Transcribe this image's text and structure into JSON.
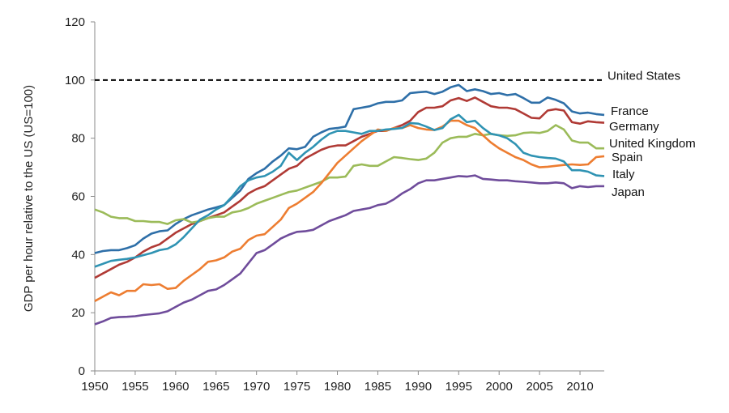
{
  "chart_data": {
    "type": "line",
    "title": "",
    "xlabel": "",
    "ylabel": "GDP per hour relative to the US (US=100)",
    "xlim": [
      1950,
      2013
    ],
    "ylim": [
      0,
      120
    ],
    "xticks": [
      1950,
      1955,
      1960,
      1965,
      1970,
      1975,
      1980,
      1985,
      1990,
      1995,
      2000,
      2005,
      2010
    ],
    "yticks": [
      0,
      20,
      40,
      60,
      80,
      100,
      120
    ],
    "grid": false,
    "legend": "none (series labelled at the right end of each line)",
    "reference_line": {
      "name": "United States",
      "value": 100,
      "style": "dashed",
      "color": "#000000"
    },
    "x": [
      1950,
      1951,
      1952,
      1953,
      1954,
      1955,
      1956,
      1957,
      1958,
      1959,
      1960,
      1961,
      1962,
      1963,
      1964,
      1965,
      1966,
      1967,
      1968,
      1969,
      1970,
      1971,
      1972,
      1973,
      1974,
      1975,
      1976,
      1977,
      1978,
      1979,
      1980,
      1981,
      1982,
      1983,
      1984,
      1985,
      1986,
      1987,
      1988,
      1989,
      1990,
      1991,
      1992,
      1993,
      1994,
      1995,
      1996,
      1997,
      1998,
      1999,
      2000,
      2001,
      2002,
      2003,
      2004,
      2005,
      2006,
      2007,
      2008,
      2009,
      2010,
      2011,
      2012,
      2013
    ],
    "series": [
      {
        "name": "France",
        "color": "#2e6fa8",
        "values": [
          40.5,
          41.2,
          41.5,
          41.5,
          42.2,
          43.2,
          45.5,
          47.2,
          48.0,
          48.3,
          50.5,
          52.2,
          53.5,
          54.5,
          55.5,
          56.2,
          57.0,
          59.5,
          62.0,
          66.0,
          68.0,
          69.5,
          72.0,
          74.0,
          76.5,
          76.2,
          77.0,
          80.5,
          82.0,
          83.2,
          83.5,
          84.0,
          90.0,
          90.5,
          91.0,
          92.0,
          92.5,
          92.5,
          93.0,
          95.5,
          95.8,
          96.0,
          95.2,
          96.0,
          97.5,
          98.3,
          96.2,
          96.8,
          96.2,
          95.2,
          95.5,
          94.8,
          95.2,
          93.8,
          92.2,
          92.2,
          94.0,
          93.2,
          92.0,
          89.2,
          88.5,
          88.8,
          88.3,
          88.0
        ]
      },
      {
        "name": "Germany",
        "color": "#b03a35",
        "values": [
          32.0,
          33.5,
          35.0,
          36.5,
          37.5,
          39.0,
          41.0,
          42.5,
          43.5,
          45.5,
          47.5,
          49.0,
          50.5,
          51.5,
          52.5,
          53.5,
          54.5,
          56.5,
          58.5,
          61.0,
          62.5,
          63.5,
          65.5,
          67.5,
          69.5,
          70.5,
          73.0,
          74.5,
          76.0,
          77.0,
          77.5,
          77.5,
          79.0,
          80.5,
          81.5,
          82.5,
          82.5,
          83.5,
          84.5,
          86.0,
          89.0,
          90.5,
          90.5,
          91.0,
          93.0,
          93.8,
          92.8,
          94.0,
          92.5,
          91.0,
          90.5,
          90.5,
          90.0,
          88.5,
          87.0,
          86.8,
          89.5,
          90.0,
          89.5,
          85.5,
          85.0,
          85.8,
          85.5,
          85.3
        ]
      },
      {
        "name": "United Kingdom",
        "color": "#9bbb59",
        "values": [
          55.5,
          54.5,
          53.0,
          52.5,
          52.5,
          51.5,
          51.5,
          51.2,
          51.2,
          50.5,
          51.8,
          52.2,
          51.0,
          51.5,
          52.5,
          53.0,
          53.0,
          54.5,
          55.0,
          56.0,
          57.5,
          58.5,
          59.5,
          60.5,
          61.5,
          62.0,
          63.0,
          64.0,
          65.0,
          66.5,
          66.5,
          66.8,
          70.5,
          71.0,
          70.5,
          70.5,
          72.0,
          73.5,
          73.2,
          72.8,
          72.5,
          73.0,
          75.0,
          78.5,
          80.0,
          80.5,
          80.5,
          81.5,
          81.0,
          81.5,
          81.0,
          80.8,
          81.0,
          81.8,
          82.0,
          81.8,
          82.5,
          84.5,
          83.0,
          79.2,
          78.5,
          78.5,
          76.5,
          76.5
        ]
      },
      {
        "name": "Spain",
        "color": "#ed7d31",
        "values": [
          24.0,
          25.5,
          27.0,
          26.0,
          27.5,
          27.5,
          29.8,
          29.5,
          29.8,
          28.2,
          28.5,
          31.0,
          33.0,
          35.0,
          37.5,
          38.0,
          39.0,
          41.0,
          42.0,
          45.0,
          46.5,
          47.0,
          49.5,
          52.0,
          56.0,
          57.5,
          59.5,
          61.5,
          64.5,
          68.0,
          71.5,
          74.0,
          76.5,
          79.0,
          81.0,
          83.0,
          82.5,
          83.5,
          83.5,
          84.5,
          83.5,
          83.0,
          82.8,
          84.0,
          86.0,
          86.0,
          84.5,
          83.5,
          81.0,
          78.5,
          76.5,
          75.0,
          73.5,
          72.5,
          71.0,
          70.0,
          70.2,
          70.5,
          70.8,
          71.0,
          70.8,
          71.0,
          73.5,
          73.8
        ]
      },
      {
        "name": "Italy",
        "color": "#2f93b3",
        "values": [
          35.8,
          36.8,
          37.8,
          38.2,
          38.5,
          39.0,
          39.8,
          40.5,
          41.5,
          42.0,
          43.5,
          46.0,
          49.0,
          52.0,
          53.5,
          55.5,
          57.0,
          60.0,
          63.5,
          65.5,
          66.5,
          67.0,
          68.5,
          70.5,
          75.0,
          72.5,
          75.0,
          77.0,
          79.5,
          81.5,
          82.5,
          82.5,
          82.0,
          81.5,
          82.5,
          82.5,
          83.0,
          83.2,
          83.5,
          85.2,
          85.0,
          84.0,
          82.8,
          83.5,
          86.5,
          88.0,
          85.5,
          86.0,
          83.5,
          81.5,
          81.0,
          80.0,
          78.0,
          75.0,
          74.0,
          73.5,
          73.2,
          73.0,
          72.0,
          69.0,
          69.0,
          68.5,
          67.2,
          67.0
        ]
      },
      {
        "name": "Japan",
        "color": "#6f4c9b",
        "values": [
          16.0,
          17.0,
          18.2,
          18.5,
          18.6,
          18.8,
          19.2,
          19.5,
          19.8,
          20.5,
          22.0,
          23.5,
          24.5,
          26.0,
          27.5,
          28.0,
          29.5,
          31.5,
          33.5,
          37.0,
          40.5,
          41.5,
          43.5,
          45.5,
          46.8,
          47.8,
          48.0,
          48.5,
          50.0,
          51.5,
          52.5,
          53.5,
          55.0,
          55.5,
          56.0,
          57.0,
          57.5,
          59.0,
          61.0,
          62.5,
          64.5,
          65.5,
          65.5,
          66.0,
          66.5,
          67.0,
          66.8,
          67.2,
          66.0,
          65.8,
          65.5,
          65.5,
          65.2,
          65.0,
          64.8,
          64.5,
          64.5,
          64.8,
          64.5,
          62.8,
          63.5,
          63.2,
          63.5,
          63.5
        ]
      }
    ]
  }
}
